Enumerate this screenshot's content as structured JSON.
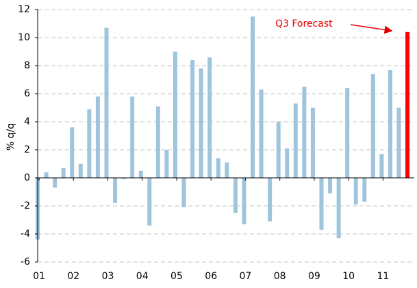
{
  "chart_data": {
    "type": "bar",
    "y_label": "% q/q",
    "annotation": "Q3 Forecast",
    "categories": [
      "01",
      null,
      null,
      null,
      "02",
      null,
      null,
      null,
      "03",
      null,
      null,
      null,
      "04",
      null,
      null,
      null,
      "05",
      null,
      null,
      null,
      "06",
      null,
      null,
      null,
      "07",
      null,
      null,
      null,
      "08",
      null,
      null,
      null,
      "09",
      null,
      null,
      null,
      "10",
      null,
      null,
      null,
      "11",
      null,
      null,
      null
    ],
    "values": [
      -4.4,
      0.4,
      -0.7,
      0.7,
      3.6,
      1.0,
      4.9,
      5.8,
      10.7,
      -1.8,
      -0.1,
      5.8,
      0.5,
      -3.4,
      5.1,
      2.0,
      9.0,
      -2.1,
      8.4,
      7.8,
      8.6,
      1.4,
      1.1,
      -2.5,
      -3.3,
      11.5,
      6.3,
      -3.1,
      4.0,
      2.1,
      5.3,
      6.5,
      5.0,
      -3.7,
      -1.1,
      -4.3,
      6.4,
      -1.9,
      -1.7,
      7.4,
      1.7,
      7.7,
      5.0,
      10.4
    ],
    "colors": [
      "#9ec5dc",
      "#9ec5dc",
      "#9ec5dc",
      "#9ec5dc",
      "#9ec5dc",
      "#9ec5dc",
      "#9ec5dc",
      "#9ec5dc",
      "#9ec5dc",
      "#9ec5dc",
      "#9ec5dc",
      "#9ec5dc",
      "#9ec5dc",
      "#9ec5dc",
      "#9ec5dc",
      "#9ec5dc",
      "#9ec5dc",
      "#9ec5dc",
      "#9ec5dc",
      "#9ec5dc",
      "#9ec5dc",
      "#9ec5dc",
      "#9ec5dc",
      "#9ec5dc",
      "#9ec5dc",
      "#9ec5dc",
      "#9ec5dc",
      "#9ec5dc",
      "#9ec5dc",
      "#9ec5dc",
      "#9ec5dc",
      "#9ec5dc",
      "#9ec5dc",
      "#9ec5dc",
      "#9ec5dc",
      "#9ec5dc",
      "#9ec5dc",
      "#9ec5dc",
      "#9ec5dc",
      "#9ec5dc",
      "#9ec5dc",
      "#9ec5dc",
      "#9ec5dc",
      "#ff0000"
    ],
    "ylim": [
      -6,
      12
    ],
    "yticks": [
      -6,
      -4,
      -2,
      0,
      2,
      4,
      6,
      8,
      10,
      12
    ],
    "grid": true
  }
}
